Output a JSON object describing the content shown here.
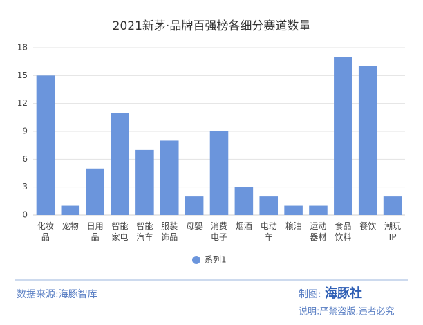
{
  "chart_data": {
    "type": "bar",
    "title": "2021新茅·品牌百强榜各细分赛道数量",
    "categories": [
      "化妆品",
      "宠物",
      "日用品",
      "智能家电",
      "智能汽车",
      "服装饰品",
      "母婴",
      "消费电子",
      "烟酒",
      "电动车",
      "粮油",
      "运动器材",
      "食品饮料",
      "餐饮",
      "潮玩IP"
    ],
    "series": [
      {
        "name": "系列1",
        "color": "#6b95dc",
        "values": [
          15,
          1,
          5,
          11,
          7,
          8,
          2,
          9,
          3,
          2,
          1,
          1,
          17,
          16,
          2
        ]
      }
    ],
    "ylim": [
      0,
      18
    ],
    "yticks": [
      0,
      3,
      6,
      9,
      12,
      15,
      18
    ],
    "grid": true,
    "legend": "bottom"
  },
  "footer": {
    "source": "数据来源:海豚智库",
    "made_by": "制图:",
    "brand": "海豚社",
    "note": "说明:严禁盗版,违者必究"
  }
}
